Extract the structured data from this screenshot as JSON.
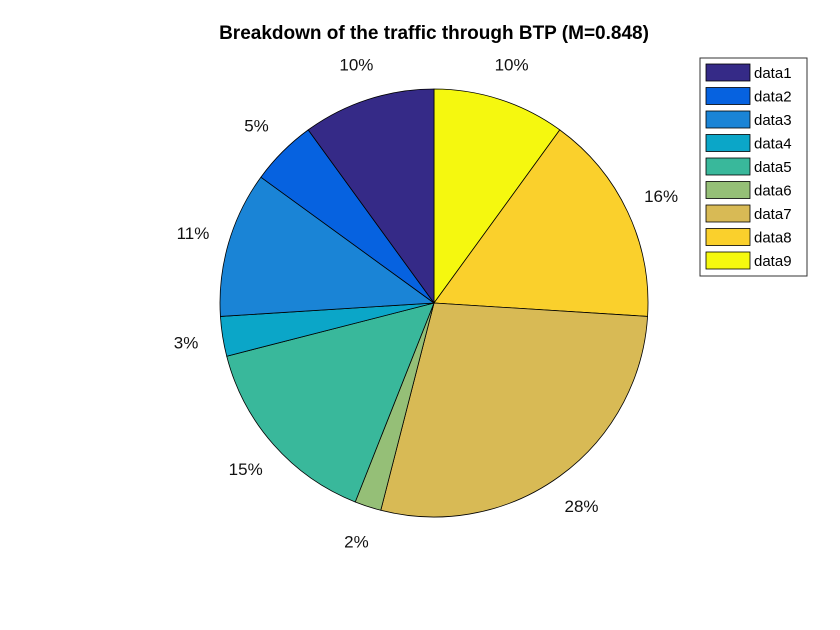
{
  "chart_data": {
    "type": "pie",
    "title": "Breakdown of the traffic through BTP (M=0.848)",
    "start": "12 o'clock",
    "direction": "clockwise",
    "legend_position": "top-right",
    "slices": [
      {
        "name": "data9",
        "value": 10,
        "label": "10%",
        "color": "#F5F80F"
      },
      {
        "name": "data8",
        "value": 16,
        "label": "16%",
        "color": "#FAD02C"
      },
      {
        "name": "data7",
        "value": 28,
        "label": "28%",
        "color": "#D8BA55"
      },
      {
        "name": "data6",
        "value": 2,
        "label": "2%",
        "color": "#95BF77"
      },
      {
        "name": "data5",
        "value": 15,
        "label": "15%",
        "color": "#39B89B"
      },
      {
        "name": "data4",
        "value": 3,
        "label": "3%",
        "color": "#0BA6C8"
      },
      {
        "name": "data3",
        "value": 11,
        "label": "11%",
        "color": "#1A84D6"
      },
      {
        "name": "data2",
        "value": 5,
        "label": "5%",
        "color": "#0662E0"
      },
      {
        "name": "data1",
        "value": 10,
        "label": "10%",
        "color": "#352A87"
      }
    ],
    "legend": [
      "data1",
      "data2",
      "data3",
      "data4",
      "data5",
      "data6",
      "data7",
      "data8",
      "data9"
    ]
  }
}
